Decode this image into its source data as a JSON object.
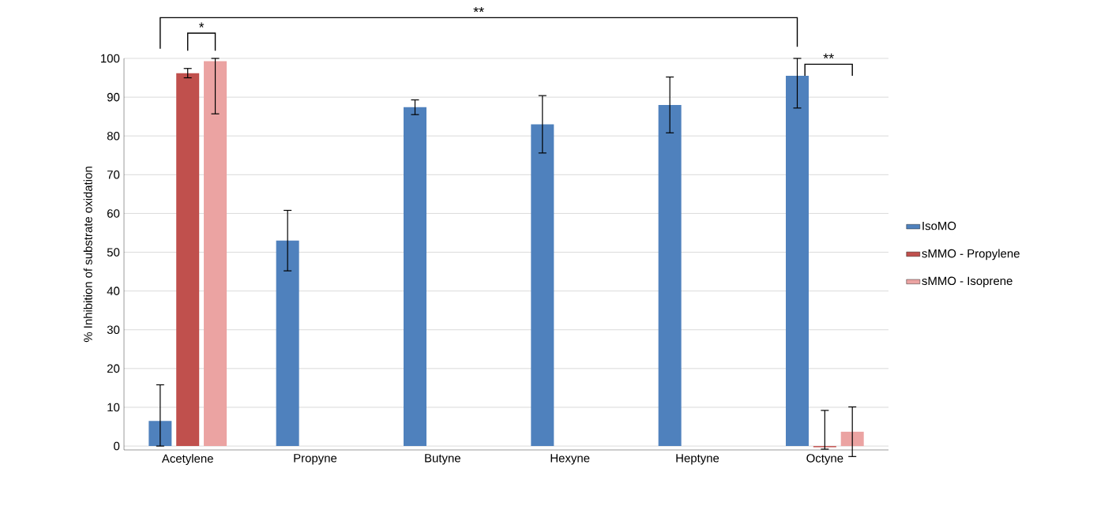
{
  "chart_data": {
    "type": "bar",
    "ylabel": "% Inhibition of substrate oxidation",
    "categories": [
      "Acetylene",
      "Propyne",
      "Butyne",
      "Hexyne",
      "Heptyne",
      "Octyne"
    ],
    "series": [
      {
        "name": "IsoMO",
        "color": "#4f81bd",
        "values": [
          6.5,
          53,
          87.4,
          83,
          88,
          95.5
        ],
        "errors": [
          [
            0,
            15.8
          ],
          7.8,
          1.9,
          7.4,
          7.2,
          [
            87.2,
            100
          ]
        ]
      },
      {
        "name": "sMMO - Propylene",
        "color": "#c0504d",
        "values": [
          96.2,
          0,
          0,
          0,
          0,
          -0.3
        ],
        "errors": [
          1.2,
          null,
          null,
          null,
          null,
          [
            -0.8,
            9.2
          ]
        ]
      },
      {
        "name": "sMMO - Isoprene",
        "color": "#eba3a2",
        "values": [
          99.3,
          0,
          0,
          0,
          0,
          3.7
        ],
        "errors": [
          [
            85.7,
            100
          ],
          null,
          null,
          null,
          null,
          6.4
        ]
      }
    ],
    "ylim": [
      -1,
      100
    ],
    "yticks": [
      0,
      10,
      20,
      30,
      40,
      50,
      60,
      70,
      80,
      90,
      100
    ],
    "grid": "y",
    "legend": "right",
    "annotations": [
      "**",
      "*",
      "**"
    ]
  }
}
